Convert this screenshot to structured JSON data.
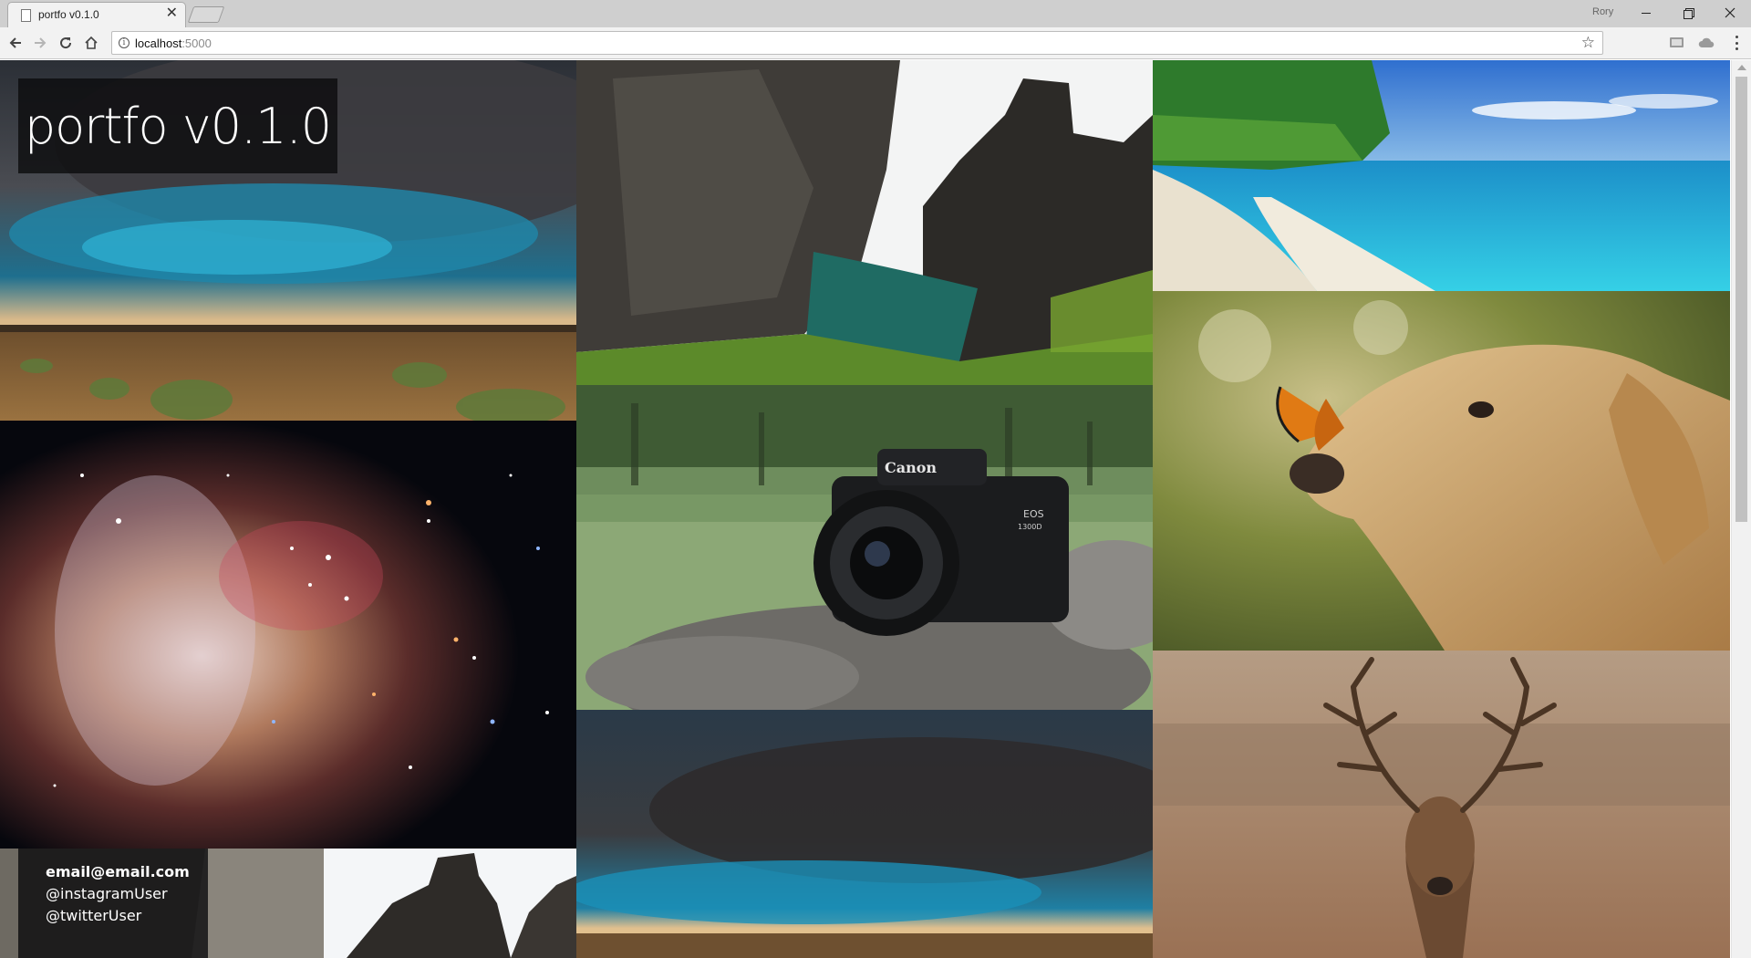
{
  "browser": {
    "tab_title": "portfo v0.1.0",
    "tab_close": "✕",
    "profile_name": "Rory",
    "url_host": "localhost",
    "url_port": ":5000",
    "star": "☆"
  },
  "page": {
    "site_title": "portfo v0.1.0",
    "contact": {
      "email": "email@email.com",
      "instagram": "@instagramUser",
      "twitter": "@twitterUser"
    },
    "gallery": [
      {
        "subject": "storm clouds over prairie",
        "column": 1
      },
      {
        "subject": "galaxy star cluster",
        "column": 1
      },
      {
        "subject": "coastal rocks",
        "column": 1
      },
      {
        "subject": "rocky cove with green water",
        "column": 2
      },
      {
        "subject": "Canon EOS 1300D camera on rock",
        "column": 2
      },
      {
        "subject": "storm clouds over prairie",
        "column": 2
      },
      {
        "subject": "tropical beach",
        "column": 3
      },
      {
        "subject": "golden retriever with butterfly",
        "column": 3
      },
      {
        "subject": "red deer stag",
        "column": 3
      }
    ],
    "camera_brand": "Canon",
    "camera_model_1": "EOS",
    "camera_model_2": "1300D"
  },
  "colors": {
    "chrome_tabstrip": "#cfcfcf",
    "chrome_toolbar": "#f2f2f2",
    "overlay": "#0a0a0c"
  }
}
